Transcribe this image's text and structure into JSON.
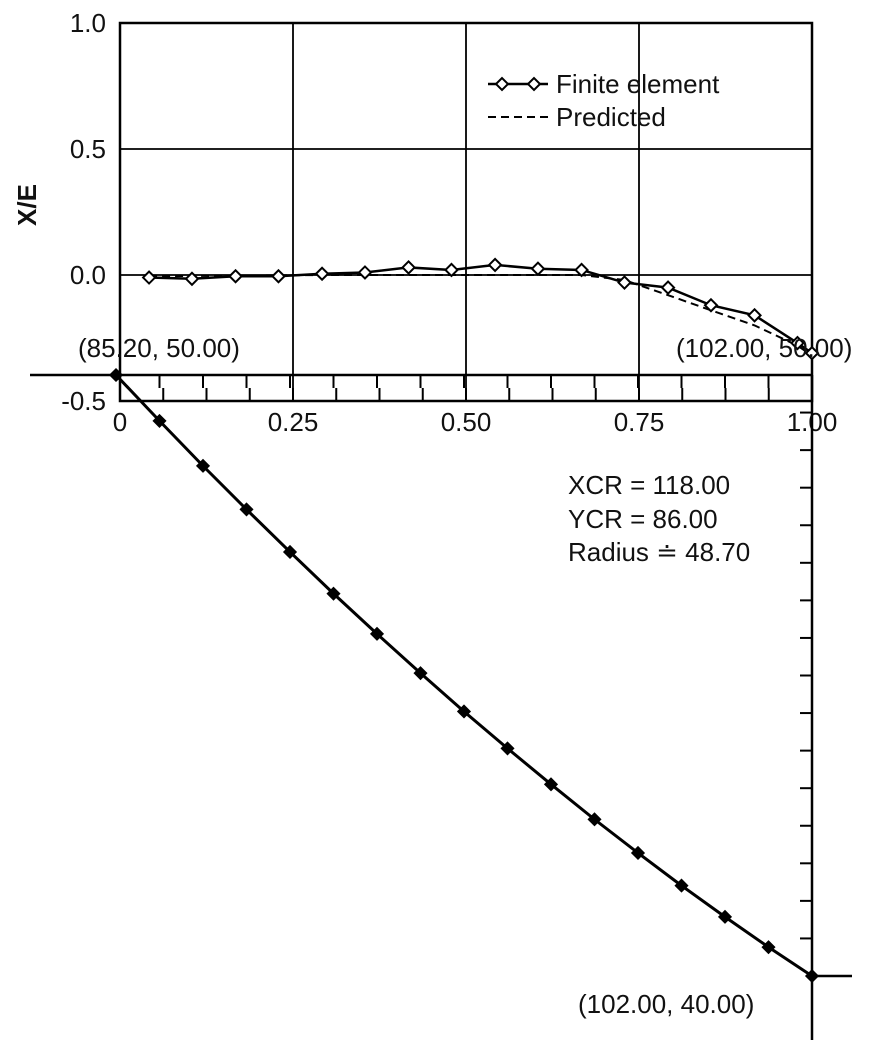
{
  "chart_data": [
    {
      "type": "line",
      "ylabel": "X/E",
      "xlabel": "",
      "xlim": [
        0,
        1.0
      ],
      "ylim": [
        -0.5,
        1.0
      ],
      "grid": true,
      "legend_position": "top-right",
      "x_tick_labels": [
        "0",
        "0.25",
        "0.50",
        "0.75",
        "1.00"
      ],
      "y_tick_labels": [
        "1.0",
        "0.5",
        "0.0",
        "-0.5"
      ],
      "series": [
        {
          "name": "Finite element",
          "marker": "open-diamond",
          "line": "solid",
          "x": [
            0.042,
            0.104,
            0.167,
            0.229,
            0.292,
            0.354,
            0.417,
            0.479,
            0.542,
            0.604,
            0.667,
            0.729,
            0.792,
            0.854,
            0.917,
            0.979,
            1.0
          ],
          "y": [
            -0.01,
            -0.015,
            -0.005,
            -0.005,
            0.005,
            0.01,
            0.03,
            0.02,
            0.04,
            0.025,
            0.02,
            -0.03,
            -0.05,
            -0.12,
            -0.16,
            -0.27,
            -0.31
          ]
        },
        {
          "name": "Predicted",
          "line": "dashed",
          "x": [
            0.042,
            0.292,
            0.667,
            0.729,
            0.792,
            0.854,
            0.917,
            0.979,
            1.0
          ],
          "y": [
            -0.005,
            0.0,
            0.0,
            -0.02,
            -0.08,
            -0.14,
            -0.2,
            -0.28,
            -0.32
          ]
        }
      ]
    },
    {
      "type": "line",
      "title": "",
      "point_labels": [
        "(85.20, 50.00)",
        "(102.00, 50.00)",
        "(102.00, 40.00)"
      ],
      "annotation": [
        "XCR = 118.00",
        "YCR = 86.00",
        "Radius ≐ 48.70"
      ],
      "series": [
        {
          "name": "",
          "marker": "filled-diamond",
          "x": [
            85.2,
            86.25,
            87.3,
            88.35,
            89.4,
            90.45,
            91.5,
            92.55,
            93.6,
            94.65,
            95.7,
            96.75,
            97.8,
            98.85,
            99.9,
            100.95,
            102.0
          ],
          "y": [
            50.0,
            49.03,
            48.08,
            47.16,
            46.26,
            45.38,
            44.53,
            43.7,
            42.89,
            42.11,
            41.35,
            40.61,
            39.9,
            39.21,
            38.55,
            37.91,
            37.3
          ]
        }
      ]
    }
  ]
}
